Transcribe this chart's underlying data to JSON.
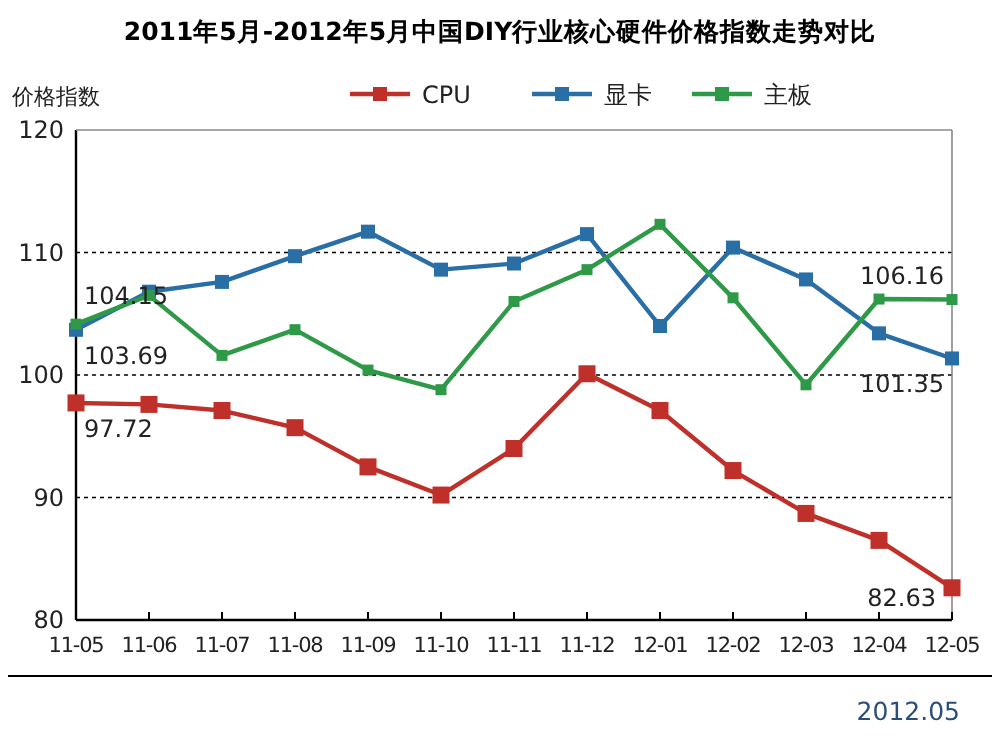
{
  "chart_data": {
    "type": "line",
    "title": "2011年5月-2012年5月中国DIY行业核心硬件价格指数走势对比",
    "ylabel": "价格指数",
    "categories": [
      "11-05",
      "11-06",
      "11-07",
      "11-08",
      "11-09",
      "11-10",
      "11-11",
      "11-12",
      "12-01",
      "12-02",
      "12-03",
      "12-04",
      "12-05"
    ],
    "series": [
      {
        "name": "CPU",
        "color": "#c0302a",
        "values": [
          97.72,
          97.6,
          97.1,
          95.7,
          92.5,
          90.2,
          94.0,
          100.1,
          97.1,
          92.2,
          88.7,
          86.5,
          82.63
        ],
        "value_labels": [
          "97.72",
          null,
          null,
          null,
          null,
          null,
          null,
          null,
          null,
          null,
          null,
          null,
          "82.63"
        ]
      },
      {
        "name": "显卡",
        "color": "#2a6ea6",
        "values": [
          103.69,
          106.8,
          107.6,
          109.7,
          111.7,
          108.6,
          109.1,
          111.5,
          104.0,
          110.4,
          107.8,
          103.4,
          101.35
        ],
        "value_labels": [
          "103.69",
          null,
          null,
          null,
          null,
          null,
          null,
          null,
          null,
          null,
          null,
          null,
          "101.35"
        ]
      },
      {
        "name": "主板",
        "color": "#2e9a48",
        "values": [
          104.15,
          106.5,
          101.6,
          103.7,
          100.4,
          98.8,
          106.0,
          108.6,
          112.3,
          106.3,
          99.2,
          106.2,
          106.16
        ],
        "value_labels": [
          "104.15",
          null,
          null,
          null,
          null,
          null,
          null,
          null,
          null,
          null,
          null,
          null,
          "106.16"
        ]
      }
    ],
    "ylim": [
      80,
      120
    ],
    "yticks": [
      80,
      90,
      100,
      110,
      120
    ],
    "grid": "y",
    "legend": "top",
    "marker": "square",
    "line_style": "solid",
    "annotations": [
      "2012.05"
    ]
  }
}
